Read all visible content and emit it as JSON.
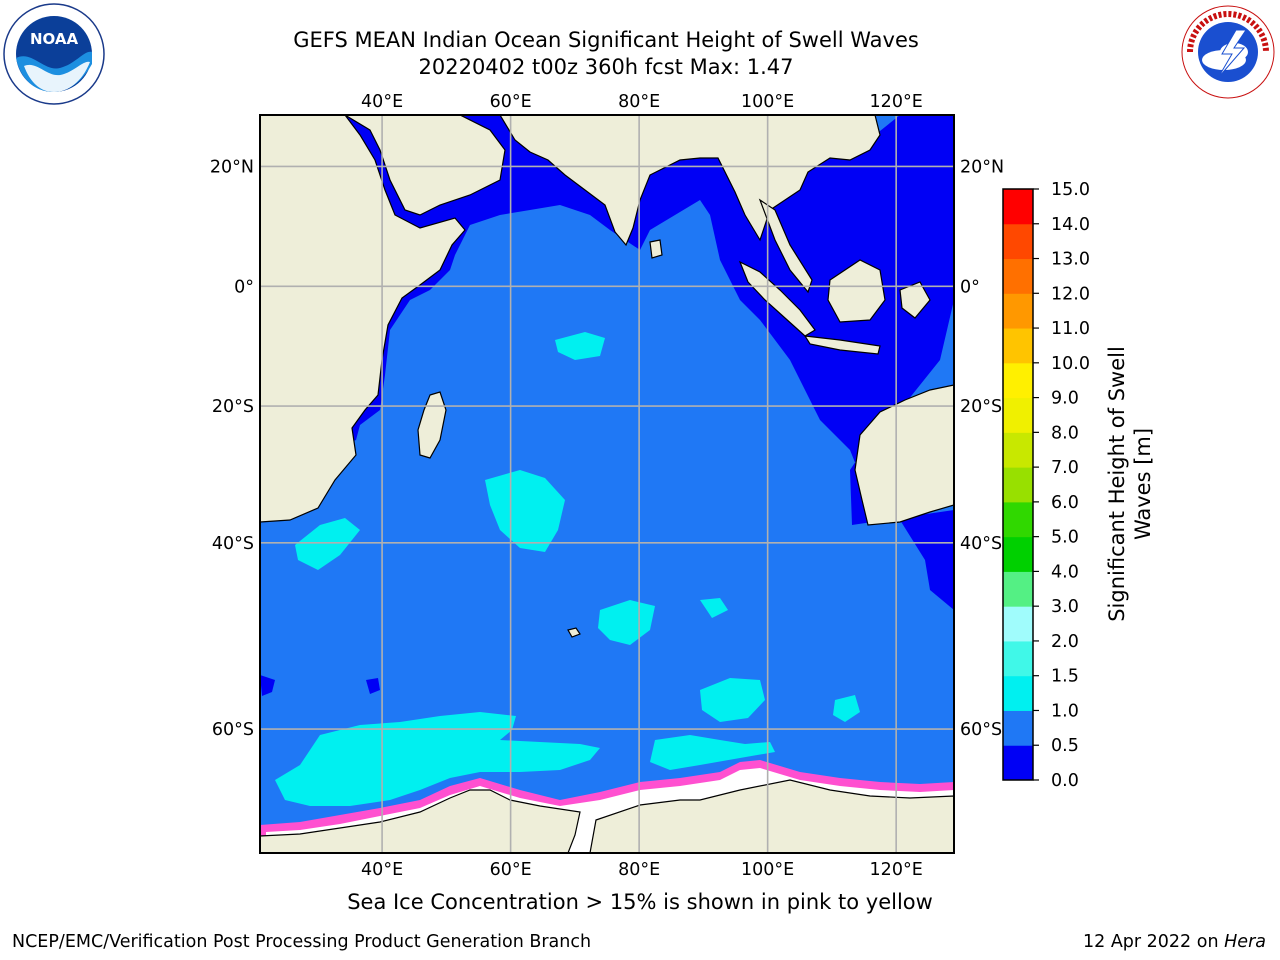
{
  "header": {
    "title_line1": "GEFS MEAN Indian Ocean Significant Height of Swell Waves",
    "title_line2": "20220402 t00z 360h fcst   Max: 1.47"
  },
  "logos": {
    "noaa_text": "NOAA",
    "noaa_ring_text": "NATIONAL OCEANIC AND ATMOSPHERIC ADMINISTRATION · U.S. DEPARTMENT OF COMMERCE",
    "nws_ring_text": "NATIONAL WEATHER SERVICE"
  },
  "map": {
    "lon_ticks": [
      "40°E",
      "60°E",
      "80°E",
      "100°E",
      "120°E"
    ],
    "lon_values": [
      40,
      60,
      80,
      100,
      120
    ],
    "lat_ticks": [
      "20°N",
      "0°",
      "20°S",
      "40°S",
      "60°S"
    ],
    "lat_values": [
      20,
      0,
      -20,
      -40,
      -60
    ],
    "lon_range": [
      21,
      129
    ],
    "lat_range": [
      28,
      -69
    ]
  },
  "colorbar": {
    "label": "Significant Height of Swell Waves [m]",
    "ticks": [
      "0.0",
      "0.5",
      "1.0",
      "1.5",
      "2.0",
      "3.0",
      "4.0",
      "5.0",
      "6.0",
      "7.0",
      "8.0",
      "9.0",
      "10.0",
      "11.0",
      "12.0",
      "13.0",
      "14.0",
      "15.0"
    ],
    "colors": [
      "#0000f5",
      "#1f78f5",
      "#00f0f0",
      "#40f8e8",
      "#a0fcfc",
      "#54f084",
      "#00d000",
      "#30d800",
      "#98e000",
      "#c8e800",
      "#f0f000",
      "#fff000",
      "#ffc400",
      "#ff9800",
      "#ff7000",
      "#ff4800",
      "#ff0000"
    ]
  },
  "colors": {
    "ocean_main": "#1f78f5",
    "ocean_low": "#0000f5",
    "swell_high": "#00f0f0",
    "land": "#eeeed9",
    "ice_white": "#ffffff",
    "ice_pink": "#ff50d0"
  },
  "footer": {
    "note": "Sea Ice Concentration > 15% is shown in pink to yellow",
    "branch": "NCEP/EMC/Verification Post Processing Product Generation Branch",
    "date": "12 Apr 2022 on",
    "host": "Hera"
  }
}
